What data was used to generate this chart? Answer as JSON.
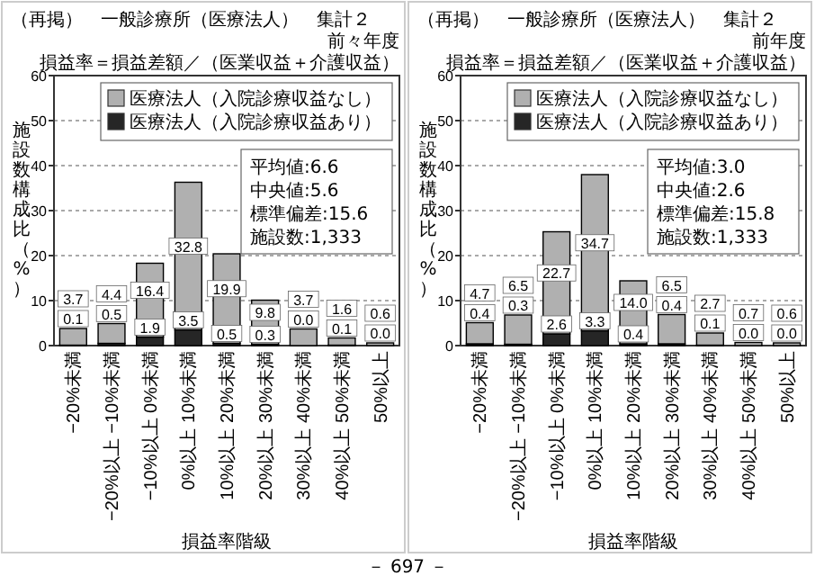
{
  "chart_data": [
    {
      "type": "bar",
      "stacked": true,
      "title": "（再掲）　一般診療所（医療法人）　集計２",
      "subtitle": "前々年度",
      "xlabel": "損益率階級",
      "ylabel": "施設数構成比（%）",
      "categories": [
        "−20%未満",
        "−20%以上\n−10%未満",
        "−10%以上\n0%未満",
        "0%以上\n10%未満",
        "10%以上\n20%未満",
        "20%以上\n30%未満",
        "30%以上\n40%未満",
        "40%以上\n50%未満",
        "50%以上"
      ],
      "series": [
        {
          "name": "医療法人（入院診療収益あり）",
          "color": "#262626",
          "values": [
            0.1,
            0.5,
            1.9,
            3.5,
            0.5,
            0.3,
            0.0,
            0.1,
            0.0
          ],
          "value_labels": [
            "0.1",
            "0.5",
            "1.9",
            "3.5",
            "0.5",
            "0.3",
            "0.0",
            "0.1",
            "0.0"
          ]
        },
        {
          "name": "医療法人（入院診療収益なし）",
          "color": "#b0b0b0",
          "values": [
            3.7,
            4.4,
            16.4,
            32.8,
            19.9,
            9.8,
            3.7,
            1.6,
            0.6
          ],
          "value_labels": [
            "3.7",
            "4.4",
            "16.4",
            "32.8",
            "19.9",
            "9.8",
            "3.7",
            "1.6",
            "0.6"
          ]
        }
      ],
      "ylim": [
        0,
        60
      ],
      "yticks": [
        0,
        10,
        20,
        30,
        40,
        50,
        60
      ],
      "grid": "y",
      "legend": "top right",
      "annotations": [
        "損益率＝損益差額／（医業収益＋介護収益）",
        "平均値:6.6",
        "中央値:5.6",
        "標準偏差:15.6",
        "施設数:1,333"
      ]
    },
    {
      "type": "bar",
      "stacked": true,
      "title": "（再掲）　一般診療所（医療法人）　集計２",
      "subtitle": "前年度",
      "xlabel": "損益率階級",
      "ylabel": "施設数構成比（%）",
      "categories": [
        "−20%未満",
        "−20%以上\n−10%未満",
        "−10%以上\n0%未満",
        "0%以上\n10%未満",
        "10%以上\n20%未満",
        "20%以上\n30%未満",
        "30%以上\n40%未満",
        "40%以上\n50%未満",
        "50%以上"
      ],
      "series": [
        {
          "name": "医療法人（入院診療収益あり）",
          "color": "#262626",
          "values": [
            0.4,
            0.3,
            2.6,
            3.3,
            0.4,
            0.4,
            0.1,
            0.0,
            0.0
          ],
          "value_labels": [
            "0.4",
            "0.3",
            "2.6",
            "3.3",
            "0.4",
            "0.4",
            "0.1",
            "0.0",
            "0.0"
          ]
        },
        {
          "name": "医療法人（入院診療収益なし）",
          "color": "#b0b0b0",
          "values": [
            4.7,
            6.5,
            22.7,
            34.7,
            14.0,
            6.5,
            2.7,
            0.7,
            0.6
          ],
          "value_labels": [
            "4.7",
            "6.5",
            "22.7",
            "34.7",
            "14.0",
            "6.5",
            "2.7",
            "0.7",
            "0.6"
          ]
        }
      ],
      "ylim": [
        0,
        60
      ],
      "yticks": [
        0,
        10,
        20,
        30,
        40,
        50,
        60
      ],
      "grid": "y",
      "legend": "top right",
      "annotations": [
        "損益率＝損益差額／（医業収益＋介護収益）",
        "平均値:3.0",
        "中央値:2.6",
        "標準偏差:15.8",
        "施設数:1,333",
        "－ 697 －"
      ]
    }
  ]
}
